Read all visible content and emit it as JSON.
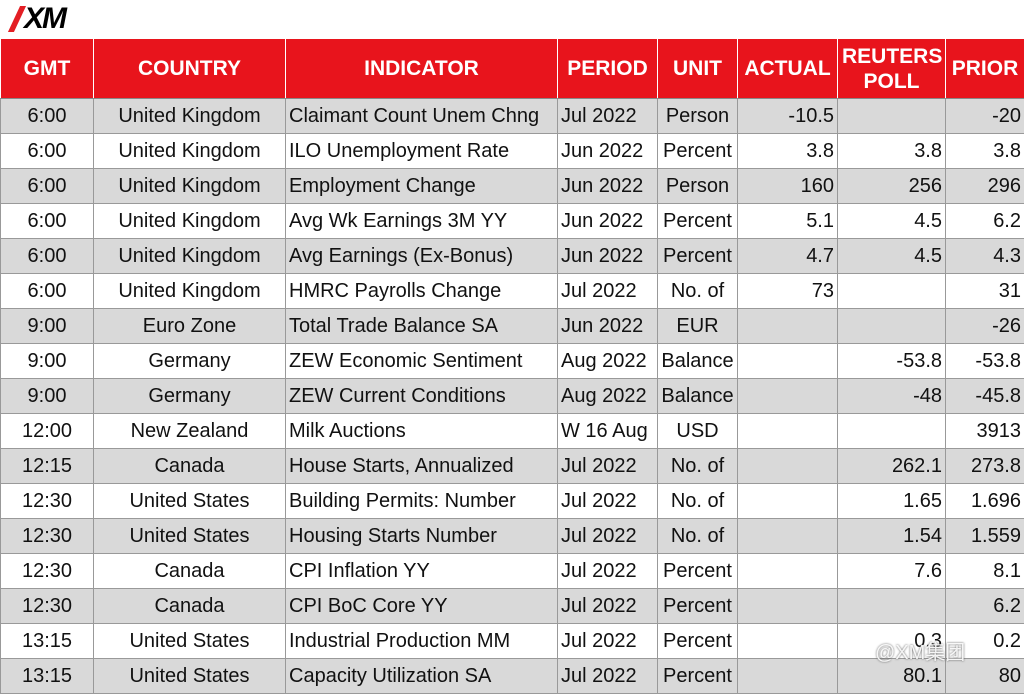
{
  "header": {
    "logo": "XM"
  },
  "table": {
    "columns": [
      "GMT",
      "COUNTRY",
      "INDICATOR",
      "PERIOD",
      "UNIT",
      "ACTUAL",
      "REUTERS POLL",
      "PRIOR"
    ],
    "rows": [
      [
        "6:00",
        "United Kingdom",
        "Claimant Count Unem Chng",
        "Jul 2022",
        "Person",
        "-10.5",
        null,
        "-20"
      ],
      [
        "6:00",
        "United Kingdom",
        "ILO Unemployment Rate",
        "Jun 2022",
        "Percent",
        "3.8",
        "3.8",
        "3.8"
      ],
      [
        "6:00",
        "United Kingdom",
        "Employment Change",
        "Jun 2022",
        "Person",
        "160",
        "256",
        "296"
      ],
      [
        "6:00",
        "United Kingdom",
        "Avg Wk Earnings 3M YY",
        "Jun 2022",
        "Percent",
        "5.1",
        "4.5",
        "6.2"
      ],
      [
        "6:00",
        "United Kingdom",
        "Avg Earnings (Ex-Bonus)",
        "Jun 2022",
        "Percent",
        "4.7",
        "4.5",
        "4.3"
      ],
      [
        "6:00",
        "United Kingdom",
        "HMRC Payrolls Change",
        "Jul 2022",
        "No. of",
        "73",
        null,
        "31"
      ],
      [
        "9:00",
        "Euro Zone",
        "Total Trade Balance SA",
        "Jun 2022",
        "EUR",
        null,
        null,
        "-26"
      ],
      [
        "9:00",
        "Germany",
        "ZEW Economic Sentiment",
        "Aug 2022",
        "Balance",
        null,
        "-53.8",
        "-53.8"
      ],
      [
        "9:00",
        "Germany",
        "ZEW Current Conditions",
        "Aug 2022",
        "Balance",
        null,
        "-48",
        "-45.8"
      ],
      [
        "12:00",
        "New Zealand",
        "Milk Auctions",
        "W 16 Aug",
        "USD",
        null,
        null,
        "3913"
      ],
      [
        "12:15",
        "Canada",
        "House Starts, Annualized",
        "Jul 2022",
        "No. of",
        null,
        "262.1",
        "273.8"
      ],
      [
        "12:30",
        "United States",
        "Building Permits: Number",
        "Jul 2022",
        "No. of",
        null,
        "1.65",
        "1.696"
      ],
      [
        "12:30",
        "United States",
        "Housing Starts Number",
        "Jul 2022",
        "No. of",
        null,
        "1.54",
        "1.559"
      ],
      [
        "12:30",
        "Canada",
        "CPI Inflation YY",
        "Jul 2022",
        "Percent",
        null,
        "7.6",
        "8.1"
      ],
      [
        "12:30",
        "Canada",
        "CPI BoC Core YY",
        "Jul 2022",
        "Percent",
        null,
        null,
        "6.2"
      ],
      [
        "13:15",
        "United States",
        "Industrial Production MM",
        "Jul 2022",
        "Percent",
        null,
        "0.3",
        "0.2"
      ],
      [
        "13:15",
        "United States",
        "Capacity Utilization SA",
        "Jul 2022",
        "Percent",
        null,
        "80.1",
        "80"
      ]
    ]
  },
  "watermark": "@XM集团"
}
